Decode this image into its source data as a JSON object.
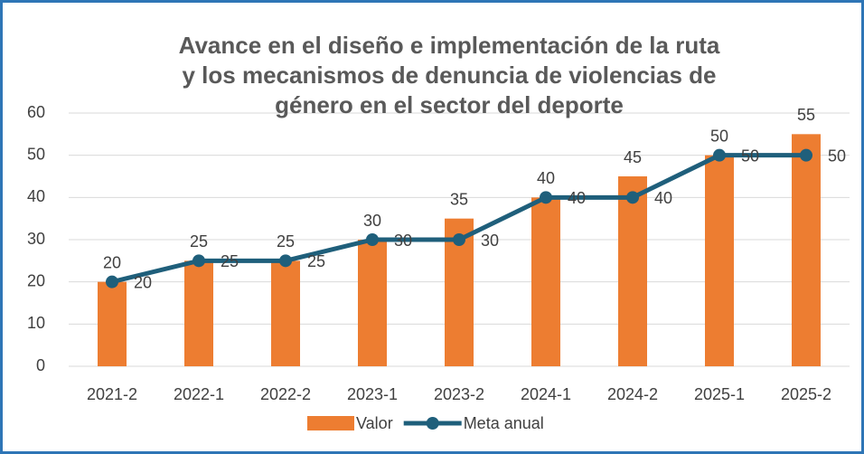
{
  "chart_data": {
    "type": "bar-line",
    "title": [
      "Avance en el diseño e implementación de la ruta",
      "y los mecanismos de denuncia de violencias de",
      "género en el sector del deporte"
    ],
    "categories": [
      "2021-2",
      "2022-1",
      "2022-2",
      "2023-1",
      "2023-2",
      "2024-1",
      "2024-2",
      "2025-1",
      "2025-2"
    ],
    "series": [
      {
        "name": "Valor",
        "type": "bar",
        "color": "#ed7d31",
        "values": [
          20,
          25,
          25,
          30,
          35,
          40,
          45,
          50,
          55
        ]
      },
      {
        "name": "Meta anual",
        "type": "line",
        "color": "#1f5f7b",
        "values": [
          20,
          25,
          25,
          30,
          30,
          40,
          40,
          50,
          50
        ]
      }
    ],
    "ylim": [
      0,
      60
    ],
    "yticks": [
      0,
      10,
      20,
      30,
      40,
      50,
      60
    ],
    "grid": true,
    "legend": "bottom"
  }
}
